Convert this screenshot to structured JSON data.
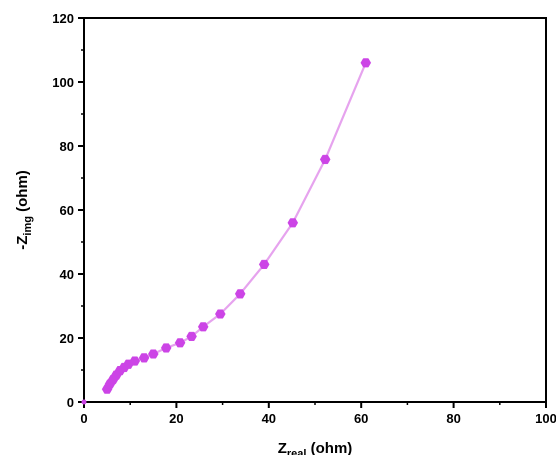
{
  "chart_data": {
    "type": "scatter",
    "series": [
      {
        "color": "#cc44e6",
        "line_color": "#e6a3ee",
        "marker": "hexagon",
        "x": [
          5.0,
          5.6,
          6.3,
          7.0,
          7.8,
          8.7,
          9.6,
          11.0,
          13.0,
          15.0,
          17.8,
          20.8,
          23.3,
          25.8,
          29.5,
          33.8,
          39.0,
          45.2,
          52.2,
          61.0
        ],
        "y": [
          4.0,
          5.6,
          7.0,
          8.4,
          9.8,
          10.8,
          11.8,
          12.8,
          13.8,
          15.0,
          16.9,
          18.5,
          20.5,
          23.5,
          27.5,
          33.8,
          43.0,
          56.0,
          75.8,
          106.0
        ]
      }
    ],
    "xlabel": {
      "main": "Z",
      "sub": "real",
      "unit": " (ohm)"
    },
    "ylabel": {
      "prefix": "-Z",
      "sub": "img",
      "unit": " (ohm)"
    },
    "xlim": [
      0,
      100
    ],
    "ylim": [
      0,
      120
    ],
    "xticks": [
      0,
      20,
      40,
      60,
      80,
      100
    ],
    "yticks": [
      0,
      20,
      40,
      60,
      80,
      100,
      120
    ],
    "grid": false,
    "legend": "none"
  }
}
